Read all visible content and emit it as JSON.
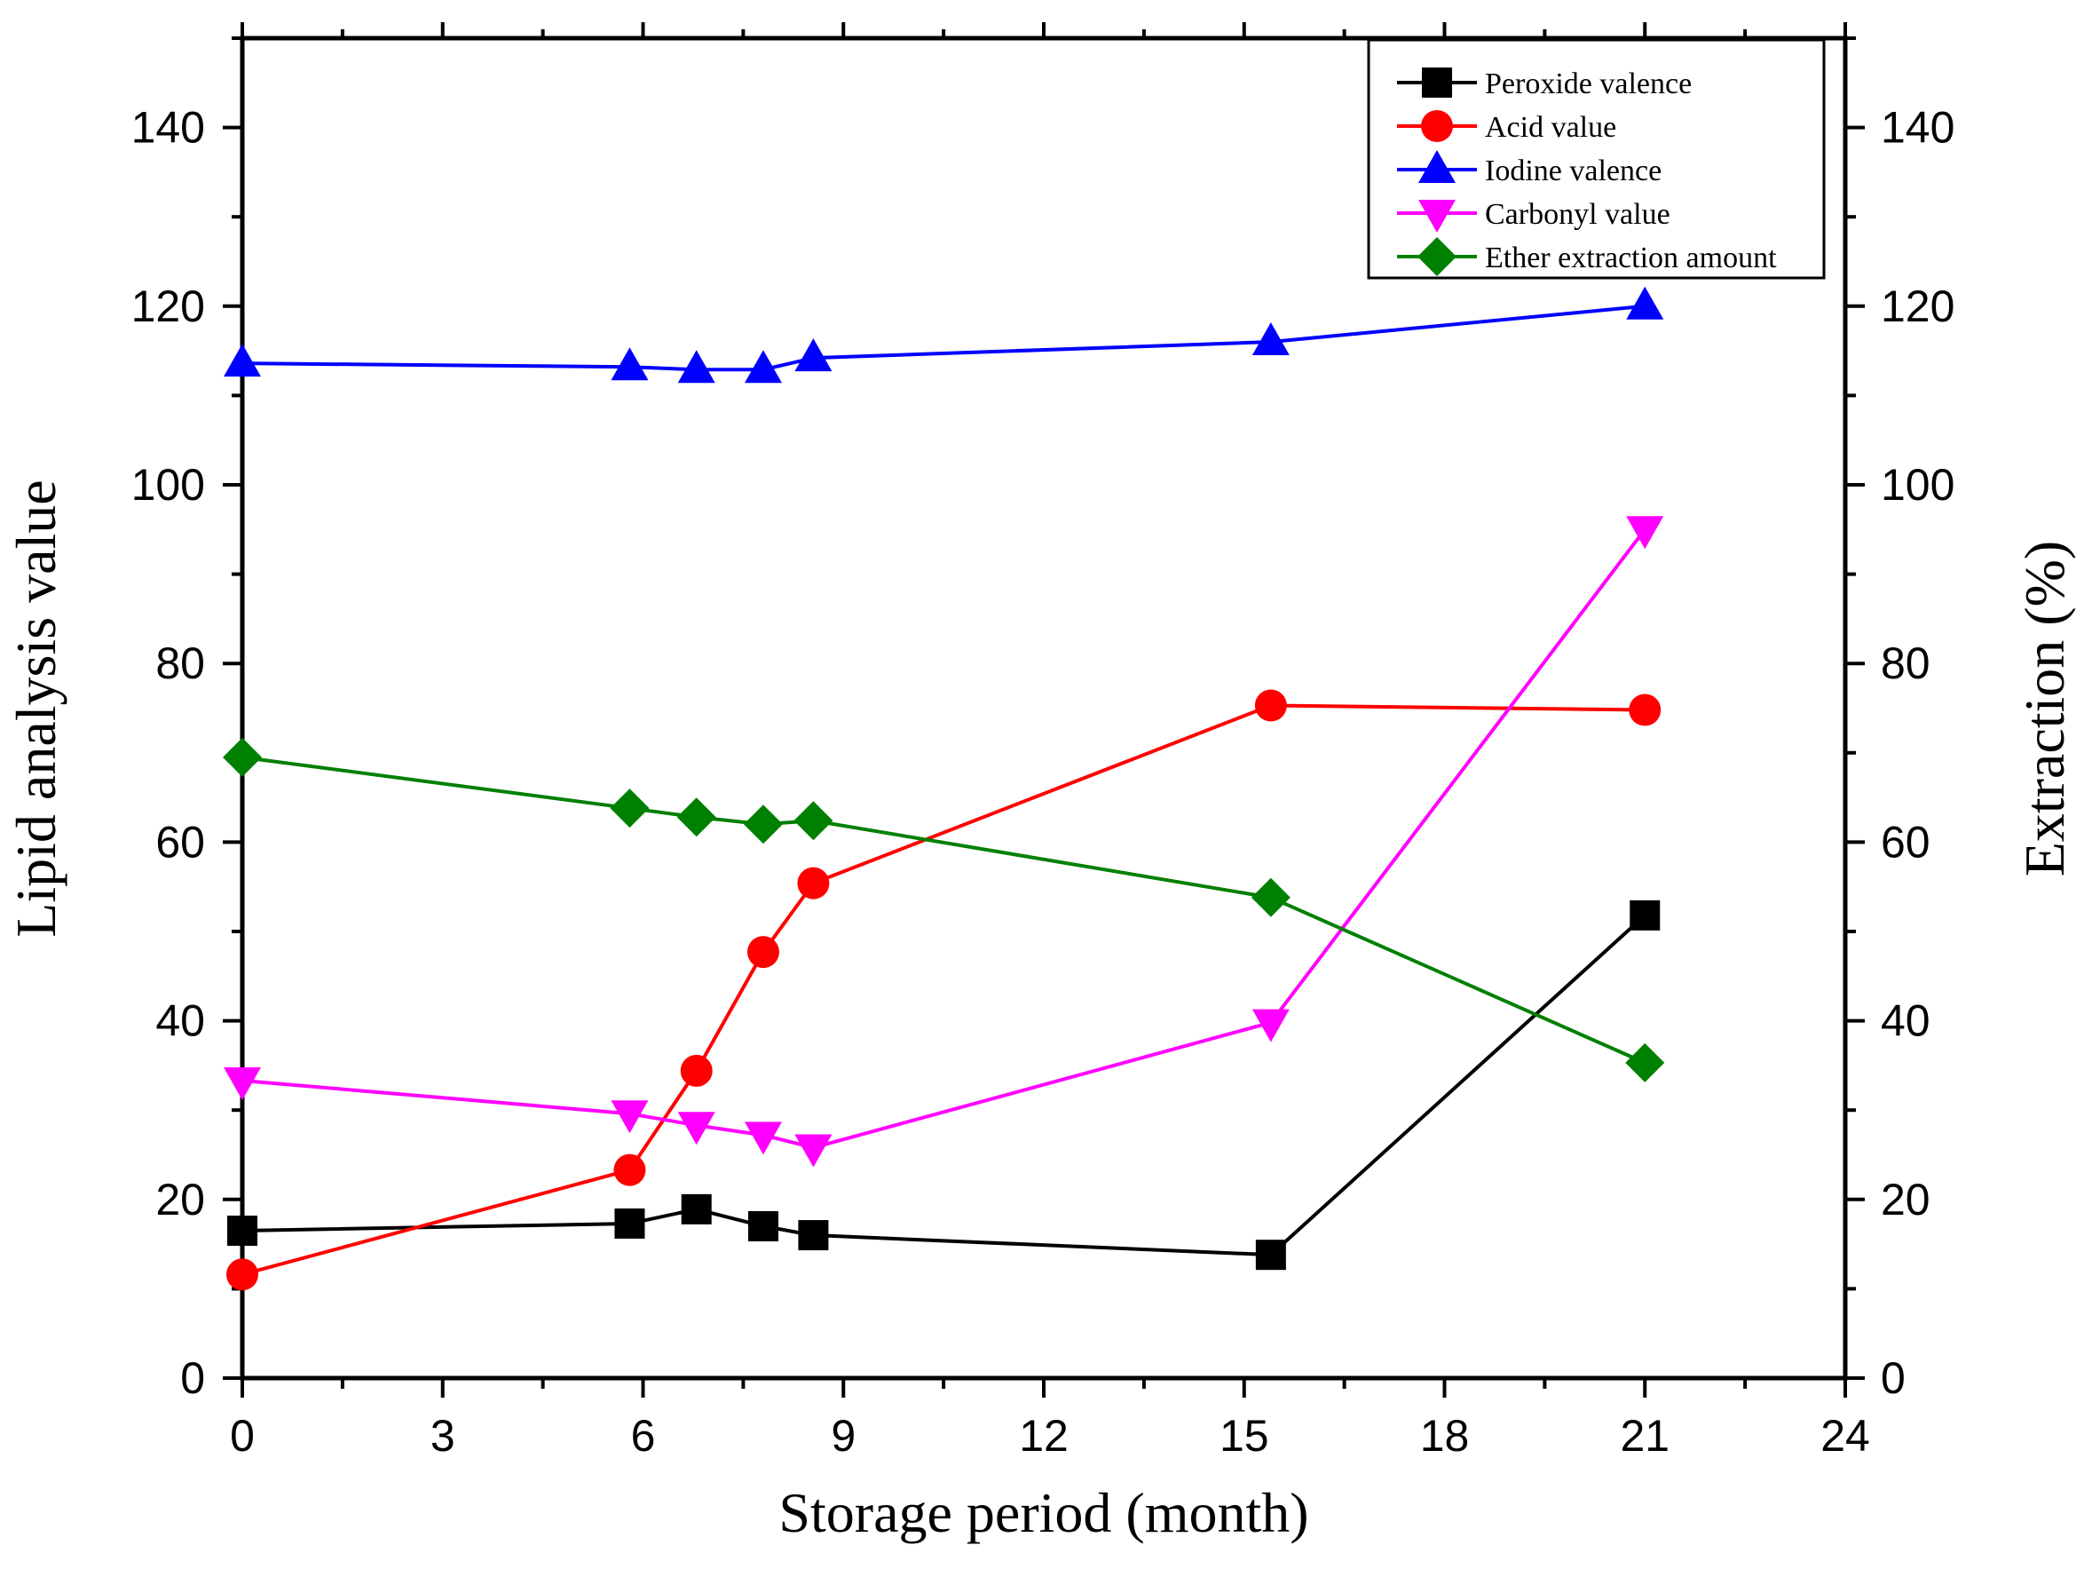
{
  "chart_data": {
    "type": "line",
    "title": "",
    "xlabel": "Storage period (month)",
    "ylabel": "Lipid analysis value",
    "y2label": "Extraction (%)",
    "xlim": [
      0,
      24
    ],
    "ylim": [
      0,
      150
    ],
    "y2lim": [
      0,
      150
    ],
    "xticks": [
      0,
      3,
      6,
      9,
      12,
      15,
      18,
      21,
      24
    ],
    "yticks": [
      0,
      20,
      40,
      60,
      80,
      100,
      120,
      140
    ],
    "y2ticks": [
      0,
      20,
      40,
      60,
      80,
      100,
      120,
      140
    ],
    "grid": false,
    "legend_position": "top-right",
    "series": [
      {
        "name": "Peroxide valence",
        "color": "#000000",
        "marker": "square",
        "x": [
          0,
          5.8,
          6.8,
          7.8,
          8.55,
          15.4,
          21
        ],
        "y": [
          16.5,
          17.3,
          18.9,
          17.0,
          16.0,
          13.8,
          51.8
        ]
      },
      {
        "name": "Acid value",
        "color": "#ff0000",
        "marker": "circle",
        "x": [
          0,
          5.8,
          6.8,
          7.8,
          8.55,
          15.4,
          21
        ],
        "y": [
          11.6,
          23.3,
          34.4,
          47.7,
          55.4,
          75.3,
          74.8
        ]
      },
      {
        "name": "Iodine valence",
        "color": "#0000ff",
        "marker": "triangle-up",
        "x": [
          0,
          5.8,
          6.8,
          7.8,
          8.55,
          15.4,
          21
        ],
        "y": [
          113.6,
          113.2,
          112.9,
          112.9,
          114.2,
          116.0,
          120.0
        ]
      },
      {
        "name": "Carbonyl value",
        "color": "#ff00ff",
        "marker": "triangle-down",
        "x": [
          0,
          5.8,
          6.8,
          7.8,
          8.55,
          15.4,
          21
        ],
        "y": [
          33.3,
          29.6,
          28.3,
          27.2,
          25.8,
          39.8,
          95.0
        ]
      },
      {
        "name": "Ether extraction amount",
        "color": "#008000",
        "marker": "diamond",
        "x": [
          0,
          5.8,
          6.8,
          7.8,
          8.55,
          15.4,
          21
        ],
        "y": [
          69.5,
          63.8,
          62.8,
          62.0,
          62.4,
          53.8,
          35.3
        ]
      }
    ]
  }
}
